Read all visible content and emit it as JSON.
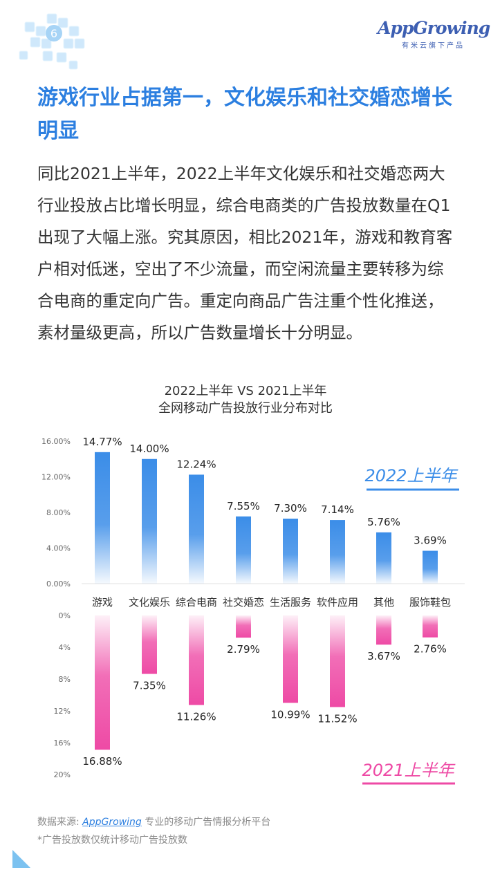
{
  "brand": {
    "name": "AppGrowing",
    "tagline": "有米云旗下产品"
  },
  "headline": "游戏行业占据第一，文化娱乐和社交婚恋增长明显",
  "body": "同比2021上半年，2022上半年文化娱乐和社交婚恋两大行业投放占比增长明显，综合电商类的广告投放数量在Q1出现了大幅上涨。究其原因，相比2021年，游戏和教育客户相对低迷，空出了不少流量，而空闲流量主要转移为综合电商的重定向广告。重定向商品广告注重个性化推送，素材量级更高，所以广告数量增长十分明显。",
  "chart_data": {
    "type": "bar",
    "title": "2022上半年 VS 2021上半年",
    "subtitle": "全网移动广告投放行业分布对比",
    "categories": [
      "游戏",
      "文化娱乐",
      "综合电商",
      "社交婚恋",
      "生活服务",
      "软件应用",
      "其他",
      "服饰鞋包"
    ],
    "series": [
      {
        "name": "2022上半年",
        "values": [
          14.77,
          14.0,
          12.24,
          7.55,
          7.3,
          7.14,
          5.76,
          3.69
        ],
        "labels": [
          "14.77%",
          "14.00%",
          "12.24%",
          "7.55%",
          "7.30%",
          "7.14%",
          "5.76%",
          "3.69%"
        ],
        "ylim": [
          0,
          16
        ],
        "ticks": [
          "0.00%",
          "4.00%",
          "8.00%",
          "12.00%",
          "16.00%"
        ],
        "color": "#3b8de8"
      },
      {
        "name": "2021上半年",
        "values": [
          16.88,
          7.35,
          11.26,
          2.79,
          10.99,
          11.52,
          3.67,
          2.76
        ],
        "labels": [
          "16.88%",
          "7.35%",
          "11.26%",
          "2.79%",
          "10.99%",
          "11.52%",
          "3.67%",
          "2.76%"
        ],
        "ylim": [
          0,
          20
        ],
        "ticks": [
          "0%",
          "4%",
          "8%",
          "12%",
          "16%",
          "20%"
        ],
        "color": "#ee4aa5"
      }
    ],
    "grid": false,
    "legend_position": "right"
  },
  "footer": {
    "source_label": "数据来源: ",
    "source_name": "AppGrowing",
    "source_desc": " 专业的移动广告情报分析平台",
    "note": "*广告投放数仅统计移动广告投放数"
  },
  "colors": {
    "accent": "#2c7fe0",
    "blue": "#3b8de8",
    "pink": "#ee4aa5",
    "logo": "#3d5fb2"
  }
}
